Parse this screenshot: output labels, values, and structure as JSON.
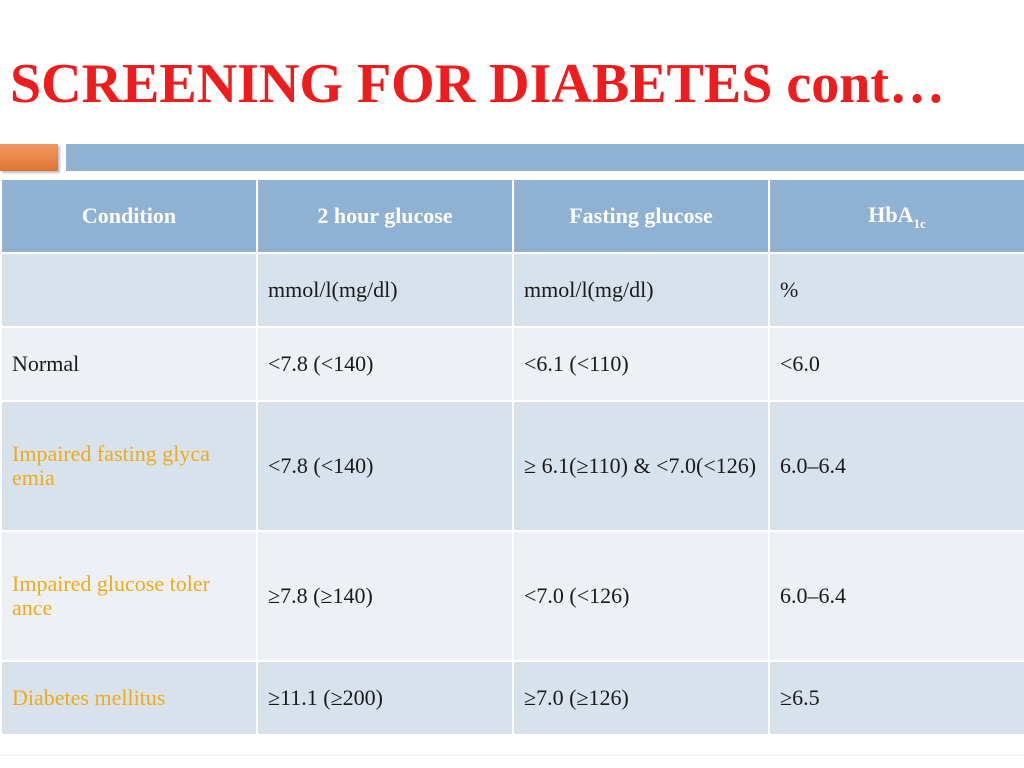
{
  "slide": {
    "title": "SCREENING FOR DIABETES cont…",
    "colors": {
      "title": "#ee1c1c",
      "header_bg": "#8fb1d2",
      "accent_orange": "#dd7433",
      "row_dark": "#d8e2ec",
      "row_light": "#edf1f6",
      "condition_highlight": "#eeab1b"
    }
  },
  "table": {
    "headers": {
      "condition": "Condition",
      "two_hour": "2 hour glucose",
      "fasting": "Fasting glucose",
      "hba_main": "HbA",
      "hba_sub": "1c"
    },
    "units": {
      "condition": "",
      "two_hour": "mmol/l(mg/dl)",
      "fasting": "mmol/l(mg/dl)",
      "hba1c": "%"
    },
    "rows": [
      {
        "condition": "Normal",
        "two_hour": "<7.8 (<140)",
        "fasting": "<6.1 (<110)",
        "hba1c": "<6.0"
      },
      {
        "condition": "Impaired fasting glyca emia",
        "two_hour": "<7.8 (<140)",
        "fasting": "≥ 6.1(≥110) & <7.0(<126)",
        "hba1c": "6.0–6.4"
      },
      {
        "condition": "Impaired glucose toler ance",
        "two_hour": "≥7.8 (≥140)",
        "fasting": "<7.0 (<126)",
        "hba1c": "6.0–6.4"
      },
      {
        "condition": "Diabetes mellitus",
        "two_hour": "≥11.1 (≥200)",
        "fasting": "≥7.0 (≥126)",
        "hba1c": "≥6.5"
      }
    ]
  }
}
